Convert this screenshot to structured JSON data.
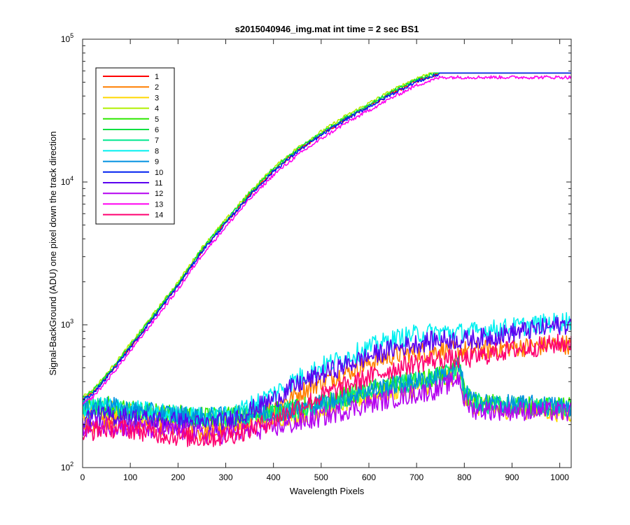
{
  "chart_data": {
    "type": "line",
    "title": "s2015040946_img.mat int time = 2 sec   BS1",
    "xlabel": "Wavelength Pixels",
    "ylabel": "Signal-BackGround (ADU) one pixel down the track direction",
    "xlim": [
      0,
      1024
    ],
    "ylim": [
      100,
      100000
    ],
    "yscale": "log",
    "x_ticks": [
      0,
      100,
      200,
      300,
      400,
      500,
      600,
      700,
      800,
      900,
      1000
    ],
    "y_ticks": [
      {
        "value": 100,
        "base": "10",
        "exp": "2"
      },
      {
        "value": 1000,
        "base": "10",
        "exp": "3"
      },
      {
        "value": 10000,
        "base": "10",
        "exp": "4"
      },
      {
        "value": 100000,
        "base": "10",
        "exp": "5"
      }
    ],
    "grid": false,
    "legend_position": "top-left",
    "series": [
      {
        "name": "1",
        "color": "#ff0000",
        "group": "rising",
        "offset": 0.0,
        "x": [
          0,
          20,
          50,
          100,
          150,
          200,
          250,
          300,
          350,
          400,
          450,
          500,
          550,
          600,
          650,
          700,
          750,
          780,
          1024
        ],
        "y": [
          300,
          330,
          430,
          700,
          1150,
          1900,
          3300,
          5200,
          8100,
          12000,
          16500,
          21500,
          27500,
          34000,
          42000,
          51000,
          58000,
          58000,
          58000
        ]
      },
      {
        "name": "2",
        "color": "#ff7f00",
        "group": "lower",
        "x": [
          0,
          20,
          50,
          100,
          150,
          200,
          250,
          300,
          350,
          400,
          450,
          500,
          550,
          600,
          650,
          700,
          750,
          800,
          850,
          900,
          950,
          1000,
          1024
        ],
        "y": [
          190,
          200,
          210,
          205,
          195,
          185,
          175,
          180,
          215,
          260,
          330,
          400,
          460,
          540,
          610,
          640,
          670,
          660,
          670,
          700,
          700,
          740,
          720
        ]
      },
      {
        "name": "3",
        "color": "#ffd700",
        "group": "flat",
        "x": [
          0,
          20,
          50,
          100,
          150,
          200,
          250,
          300,
          350,
          400,
          450,
          500,
          550,
          600,
          650,
          700,
          750,
          790,
          800,
          820,
          850,
          900,
          950,
          1000,
          1024
        ],
        "y": [
          240,
          250,
          255,
          240,
          230,
          225,
          215,
          215,
          220,
          225,
          235,
          255,
          285,
          320,
          345,
          365,
          395,
          480,
          320,
          270,
          260,
          255,
          255,
          245,
          240
        ]
      },
      {
        "name": "4",
        "color": "#b0f000",
        "group": "rising",
        "offset": 0.02,
        "x": [
          0,
          20,
          50,
          100,
          150,
          200,
          250,
          300,
          350,
          400,
          450,
          500,
          550,
          600,
          650,
          700,
          750,
          780,
          1024
        ],
        "y": [
          300,
          330,
          430,
          700,
          1150,
          1900,
          3300,
          5200,
          8100,
          12000,
          16500,
          21500,
          27500,
          34000,
          42000,
          51000,
          58000,
          58000,
          58000
        ]
      },
      {
        "name": "5",
        "color": "#2ee800",
        "group": "flat",
        "x": [
          0,
          20,
          50,
          100,
          150,
          200,
          250,
          300,
          350,
          400,
          450,
          500,
          550,
          600,
          650,
          700,
          750,
          790,
          800,
          820,
          850,
          900,
          950,
          1000,
          1024
        ],
        "y": [
          260,
          265,
          270,
          250,
          240,
          235,
          225,
          230,
          235,
          245,
          260,
          280,
          315,
          350,
          380,
          405,
          435,
          520,
          340,
          290,
          280,
          275,
          272,
          265,
          265
        ]
      },
      {
        "name": "6",
        "color": "#00e040",
        "group": "rising",
        "offset": 0.01,
        "x": [
          0,
          20,
          50,
          100,
          150,
          200,
          250,
          300,
          350,
          400,
          450,
          500,
          550,
          600,
          650,
          700,
          750,
          780,
          1024
        ],
        "y": [
          300,
          330,
          430,
          700,
          1150,
          1900,
          3300,
          5200,
          8100,
          12000,
          16500,
          21500,
          27500,
          34000,
          42000,
          51000,
          58000,
          58000,
          58000
        ]
      },
      {
        "name": "7",
        "color": "#00e890",
        "group": "flat",
        "x": [
          0,
          20,
          50,
          100,
          150,
          200,
          250,
          300,
          350,
          400,
          450,
          500,
          550,
          600,
          650,
          700,
          750,
          790,
          800,
          820,
          850,
          900,
          950,
          1000,
          1024
        ],
        "y": [
          255,
          260,
          265,
          248,
          238,
          230,
          222,
          225,
          232,
          240,
          255,
          275,
          308,
          342,
          372,
          398,
          428,
          510,
          335,
          285,
          275,
          270,
          268,
          262,
          262
        ]
      },
      {
        "name": "8",
        "color": "#00f0f0",
        "group": "upper",
        "x": [
          0,
          20,
          50,
          100,
          150,
          200,
          250,
          300,
          350,
          400,
          450,
          500,
          550,
          600,
          650,
          700,
          750,
          800,
          850,
          900,
          950,
          1000,
          1024
        ],
        "y": [
          250,
          260,
          270,
          255,
          245,
          235,
          225,
          230,
          270,
          330,
          420,
          510,
          590,
          690,
          790,
          860,
          890,
          880,
          920,
          960,
          1000,
          1050,
          1080
        ]
      },
      {
        "name": "9",
        "color": "#0090e0",
        "group": "flat",
        "x": [
          0,
          20,
          50,
          100,
          150,
          200,
          250,
          300,
          350,
          400,
          450,
          500,
          550,
          600,
          650,
          700,
          750,
          790,
          800,
          820,
          850,
          900,
          950,
          1000,
          1024
        ],
        "y": [
          265,
          270,
          270,
          252,
          242,
          235,
          226,
          228,
          236,
          244,
          258,
          278,
          312,
          346,
          376,
          402,
          432,
          515,
          340,
          290,
          282,
          276,
          274,
          268,
          268
        ]
      },
      {
        "name": "10",
        "color": "#0020f0",
        "group": "rising",
        "offset": -0.005,
        "x": [
          0,
          20,
          50,
          100,
          150,
          200,
          250,
          300,
          350,
          400,
          450,
          500,
          550,
          600,
          650,
          700,
          750,
          780,
          1024
        ],
        "y": [
          300,
          330,
          430,
          700,
          1150,
          1900,
          3300,
          5200,
          8100,
          12000,
          16500,
          21500,
          27500,
          34000,
          42000,
          51000,
          58000,
          58000,
          58000
        ]
      },
      {
        "name": "11",
        "color": "#5a00f0",
        "group": "upper2",
        "x": [
          0,
          20,
          50,
          100,
          150,
          200,
          250,
          300,
          350,
          400,
          450,
          500,
          550,
          600,
          650,
          700,
          750,
          800,
          850,
          900,
          950,
          1000,
          1024
        ],
        "y": [
          220,
          230,
          230,
          225,
          215,
          210,
          200,
          210,
          250,
          300,
          380,
          450,
          520,
          600,
          680,
          740,
          790,
          780,
          820,
          880,
          930,
          990,
          1020
        ]
      },
      {
        "name": "12",
        "color": "#b400f0",
        "group": "flat",
        "x": [
          0,
          20,
          50,
          100,
          150,
          200,
          250,
          300,
          350,
          400,
          450,
          500,
          550,
          600,
          650,
          700,
          750,
          790,
          800,
          820,
          850,
          900,
          950,
          1000,
          1024
        ],
        "y": [
          190,
          195,
          200,
          190,
          185,
          180,
          170,
          172,
          180,
          190,
          205,
          225,
          252,
          280,
          305,
          330,
          355,
          430,
          290,
          255,
          252,
          250,
          250,
          245,
          245
        ]
      },
      {
        "name": "13",
        "color": "#ff00f0",
        "group": "rising",
        "offset": -0.03,
        "x": [
          0,
          20,
          50,
          100,
          150,
          200,
          250,
          300,
          350,
          400,
          450,
          500,
          550,
          600,
          650,
          700,
          750,
          780,
          1024
        ],
        "y": [
          300,
          330,
          430,
          700,
          1150,
          1900,
          3300,
          5200,
          8100,
          12000,
          16500,
          21500,
          27500,
          34000,
          42000,
          51000,
          58000,
          58000,
          58000
        ]
      },
      {
        "name": "14",
        "color": "#ff0070",
        "group": "lower2",
        "x": [
          0,
          20,
          50,
          100,
          150,
          200,
          250,
          300,
          350,
          400,
          450,
          500,
          550,
          600,
          650,
          700,
          750,
          800,
          850,
          900,
          950,
          1000,
          1024
        ],
        "y": [
          170,
          180,
          190,
          185,
          175,
          165,
          160,
          165,
          185,
          215,
          265,
          315,
          370,
          430,
          490,
          540,
          575,
          570,
          620,
          670,
          700,
          740,
          750
        ]
      }
    ]
  }
}
